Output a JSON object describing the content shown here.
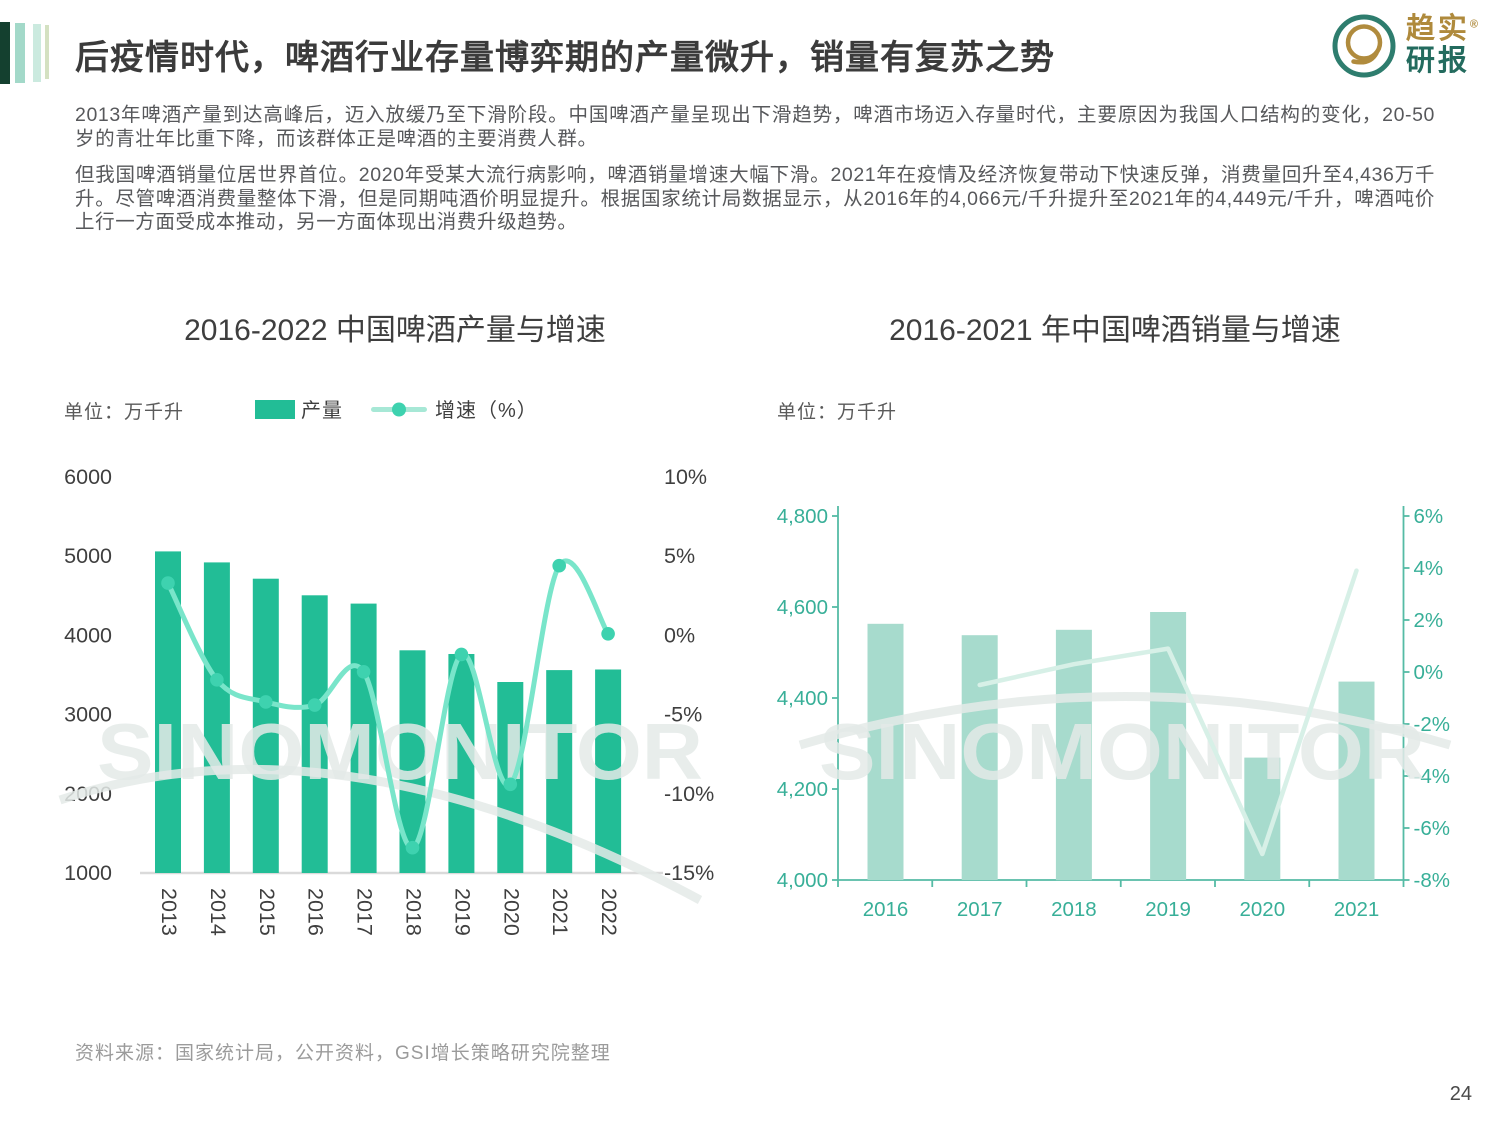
{
  "page_number": "24",
  "header": {
    "title": "后疫情时代，啤酒行业存量博弈期的产量微升，销量有复苏之势",
    "logo_text_top": "趋实",
    "logo_reg": "®",
    "logo_text_bottom": "研报"
  },
  "intro_paragraphs": [
    "2013年啤酒产量到达高峰后，迈入放缓乃至下滑阶段。中国啤酒产量呈现出下滑趋势，啤酒市场迈入存量时代，主要原因为我国人口结构的变化，20-50岁的青壮年比重下降，而该群体正是啤酒的主要消费人群。",
    "但我国啤酒销量位居世界首位。2020年受某大流行病影响，啤酒销量增速大幅下滑。2021年在疫情及经济恢复带动下快速反弹，消费量回升至4,436万千升。尽管啤酒消费量整体下滑，但是同期吨酒价明显提升。根据国家统计局数据显示，从2016年的4,066元/千升提升至2021年的4,449元/千升，啤酒吨价上行一方面受成本推动，另一方面体现出消费升级趋势。"
  ],
  "left_chart": {
    "title": "2016-2022 中国啤酒产量与增速",
    "unit_label": "单位：万千升",
    "legend": [
      {
        "label": "产量"
      },
      {
        "label": "增速（%）"
      }
    ]
  },
  "right_chart": {
    "title": "2016-2021 年中国啤酒销量与增速",
    "unit_label": "单位：万千升"
  },
  "watermark_text": "SINOMONITOR",
  "source_note": "资料来源：国家统计局，公开资料，GSI增长策略研究院整理",
  "colors": {
    "bar_green": "#22bd96",
    "line_mint": "#79e5ca",
    "dot_mint": "#3ed2af",
    "axis_gray_text": "#3f3f3f",
    "baseline_gray": "#dadada",
    "teal_text": "#38af98",
    "teal_axis_line": "#55bba5",
    "bar_light": "#a7dbcd",
    "line_light": "#d7f0e7",
    "watermark": "#e4eae8",
    "stripe_colors": [
      "#14402f",
      "#a3d9c9",
      "#cbeadf",
      "#d4e1c2"
    ],
    "logo_gold": "#b08b3d",
    "logo_teal_ring": "#2e7d6e"
  },
  "chart_data": [
    {
      "type": "bar",
      "combo": "bar+line",
      "title": "2016-2022 中国啤酒产量与增速",
      "ylabel": "万千升",
      "categories": [
        "2013",
        "2014",
        "2015",
        "2016",
        "2017",
        "2018",
        "2019",
        "2020",
        "2021",
        "2022"
      ],
      "series": [
        {
          "name": "产量",
          "type": "bar",
          "axis": "left",
          "values": [
            5061,
            4922,
            4716,
            4506,
            4401,
            3812,
            3765,
            3411,
            3562,
            3569
          ]
        },
        {
          "name": "增速（%）",
          "type": "line",
          "axis": "right",
          "values": [
            3.3,
            -2.8,
            -4.2,
            -4.4,
            -2.3,
            -13.4,
            -1.2,
            -9.4,
            4.4,
            0.1
          ]
        }
      ],
      "left_axis": {
        "min": 1000,
        "max": 6000,
        "tick_labels": [
          "6000",
          "5000",
          "4000",
          "3000",
          "2000",
          "1000"
        ]
      },
      "right_axis": {
        "min": -15,
        "max": 10,
        "tick_labels": [
          "10%",
          "5%",
          "0%",
          "-5%",
          "-10%",
          "-15%"
        ]
      },
      "legend_position": "top",
      "grid": false
    },
    {
      "type": "bar",
      "combo": "bar+line",
      "title": "2016-2021 年中国啤酒销量与增速",
      "ylabel": "万千升",
      "categories": [
        "2016",
        "2017",
        "2018",
        "2019",
        "2020",
        "2021"
      ],
      "series": [
        {
          "name": "销量",
          "type": "bar",
          "axis": "left",
          "values": [
            4563,
            4538,
            4550,
            4589,
            4269,
            4436
          ]
        },
        {
          "name": "增速（%）",
          "type": "line",
          "axis": "right",
          "values": [
            null,
            -0.5,
            0.3,
            0.9,
            -7.0,
            3.9
          ]
        }
      ],
      "left_axis": {
        "min": 4000,
        "max": 4800,
        "tick_labels": [
          "4,800",
          "4,600",
          "4,400",
          "4,200",
          "4,000"
        ]
      },
      "right_axis": {
        "min": -8,
        "max": 6,
        "tick_labels": [
          "6%",
          "4%",
          "2%",
          "0%",
          "-2%",
          "-4%",
          "-6%",
          "-8%"
        ]
      },
      "legend_position": "none",
      "grid": false
    }
  ]
}
